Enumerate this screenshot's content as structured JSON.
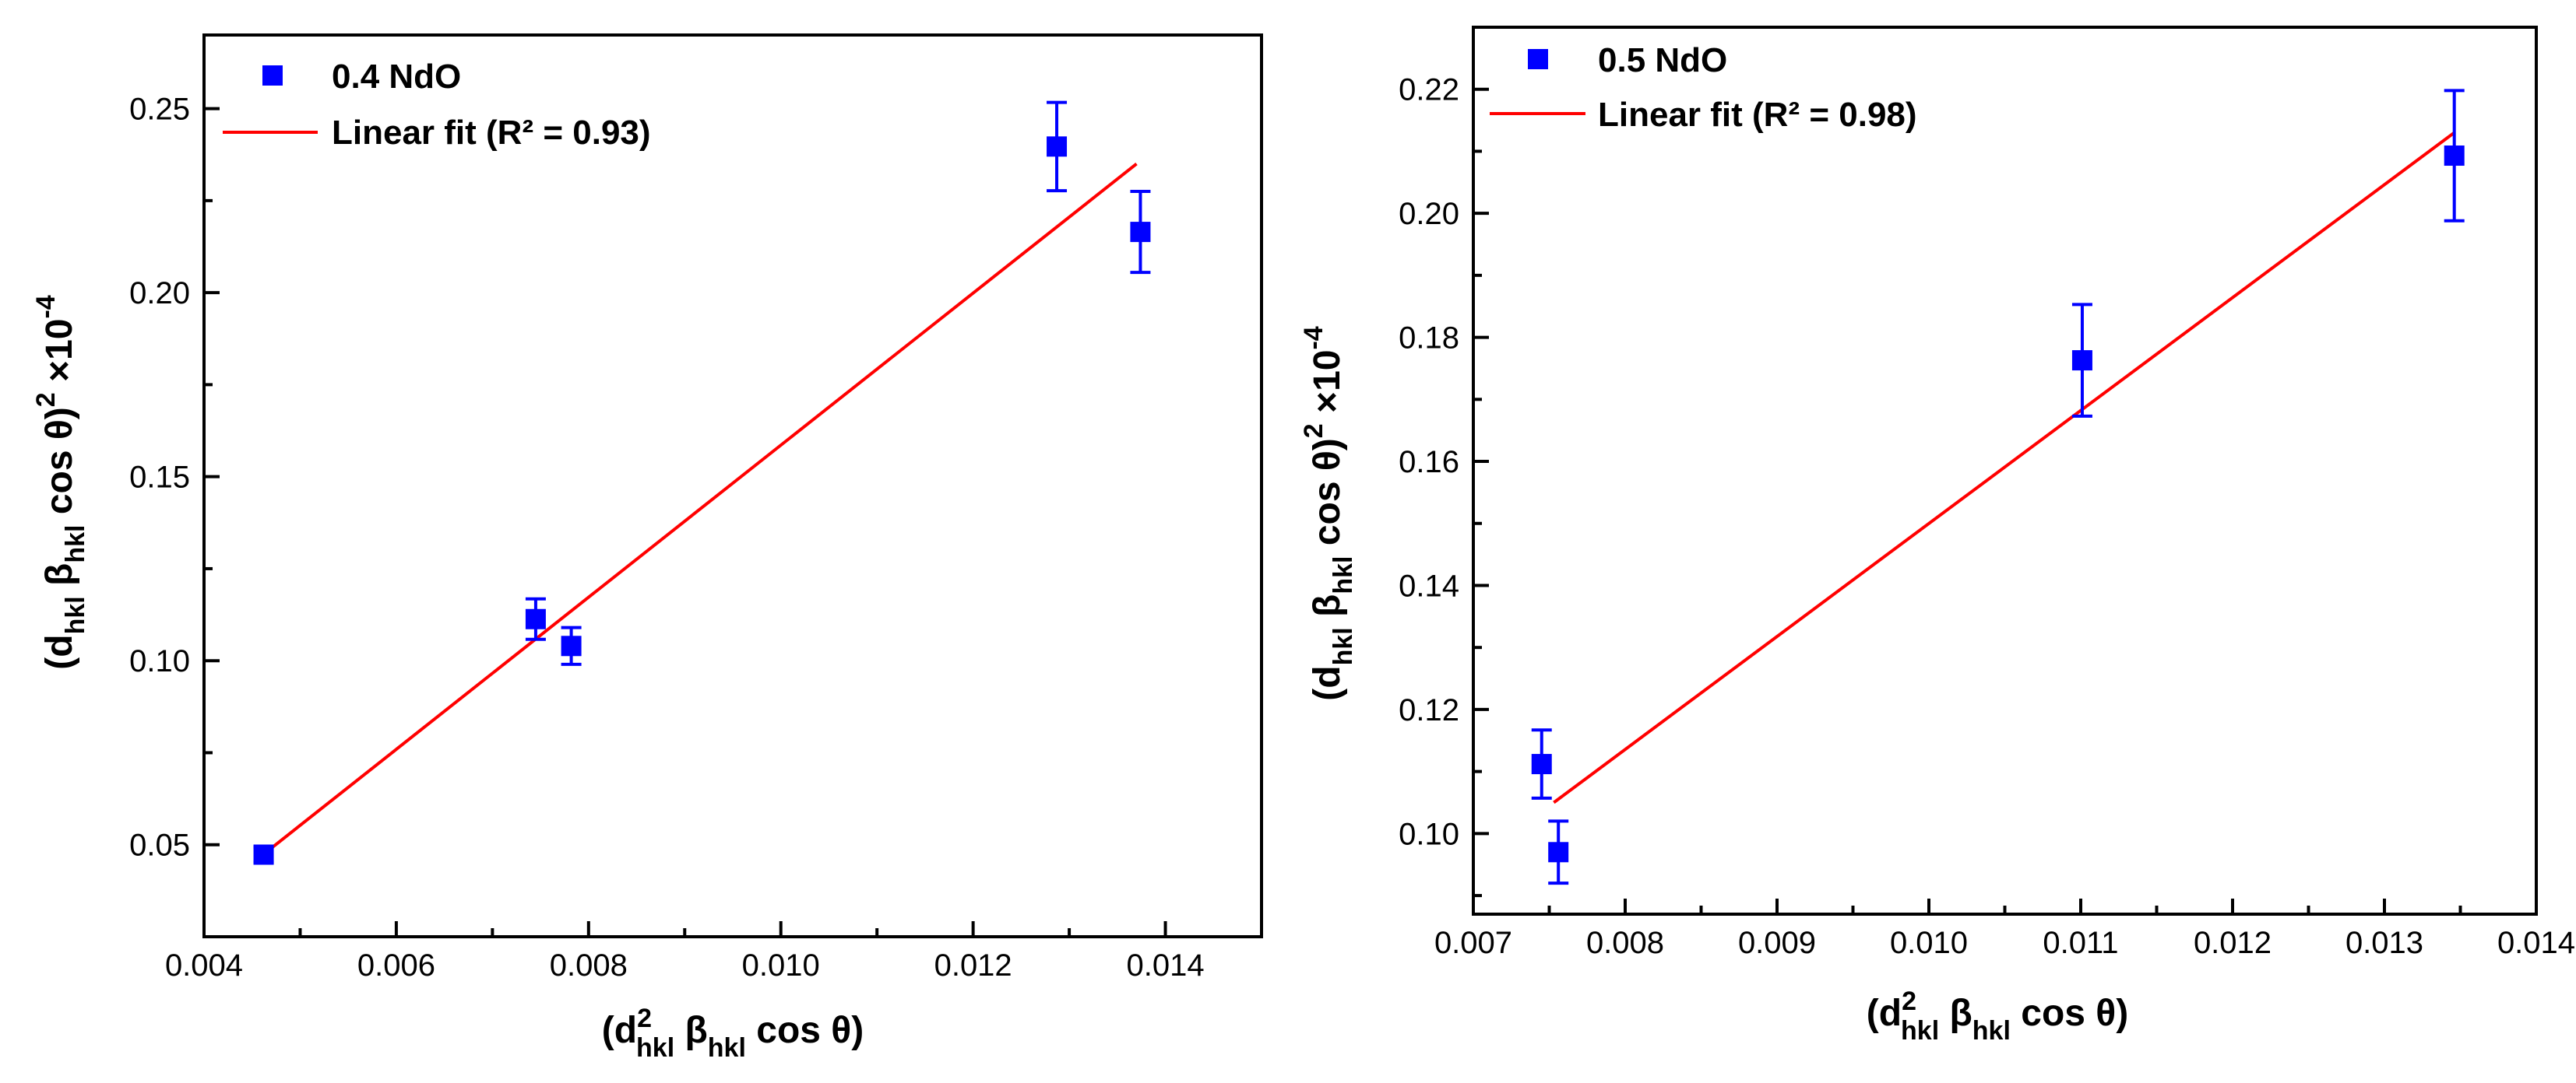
{
  "chart_data": [
    {
      "type": "scatter",
      "title": "",
      "series": [
        {
          "name": "0.4 NdO",
          "marker_color": "#0000ff",
          "x": [
            0.00462,
            0.00745,
            0.00782,
            0.01287,
            0.01374
          ],
          "y": [
            0.0473,
            0.1113,
            0.104,
            0.2397,
            0.2165
          ],
          "yerr": [
            0.002,
            0.0055,
            0.005,
            0.012,
            0.011
          ]
        }
      ],
      "fit": {
        "name": "Linear fit (R² = 0.93)",
        "color": "#ff0000",
        "x": [
          0.0046,
          0.0137
        ],
        "y": [
          0.047,
          0.235
        ]
      },
      "xlim": [
        0.004,
        0.015
      ],
      "ylim": [
        0.025,
        0.27
      ],
      "xticks": [
        0.004,
        0.006,
        0.008,
        0.01,
        0.012,
        0.014
      ],
      "xtick_labels": [
        "0.004",
        "0.006",
        "0.008",
        "0.010",
        "0.012",
        "0.014"
      ],
      "yticks": [
        0.05,
        0.1,
        0.15,
        0.2,
        0.25
      ],
      "ytick_labels": [
        "0.05",
        "0.10",
        "0.15",
        "0.20",
        "0.25"
      ],
      "xlabel": {
        "open": "(d",
        "sup": "2",
        "sub1": "hkl",
        "beta": " β",
        "sub2": "hkl",
        "tail": " cos θ)"
      },
      "ylabel": {
        "open": "(d",
        "sub1": "hkl",
        "beta": " β",
        "sub2": "hkl",
        "mid": " cos θ)",
        "sup": "2",
        "times": " ×10",
        "exp": "-4"
      },
      "legend_position": "top-left"
    },
    {
      "type": "scatter",
      "title": "",
      "series": [
        {
          "name": "0.5 NdO",
          "marker_color": "#0000ff",
          "x": [
            0.00745,
            0.00756,
            0.01101,
            0.01346
          ],
          "y": [
            0.1112,
            0.097,
            0.1763,
            0.2093
          ],
          "yerr": [
            0.0055,
            0.005,
            0.009,
            0.0105
          ]
        }
      ],
      "fit": {
        "name": "Linear fit (R² = 0.98)",
        "color": "#ff0000",
        "x": [
          0.00753,
          0.01346
        ],
        "y": [
          0.105,
          0.213
        ]
      },
      "xlim": [
        0.007,
        0.014
      ],
      "ylim": [
        0.087,
        0.23
      ],
      "xticks": [
        0.007,
        0.008,
        0.009,
        0.01,
        0.011,
        0.012,
        0.013,
        0.014
      ],
      "xtick_labels": [
        "0.007",
        "0.008",
        "0.009",
        "0.010",
        "0.011",
        "0.012",
        "0.013",
        "0.014"
      ],
      "yticks": [
        0.1,
        0.12,
        0.14,
        0.16,
        0.18,
        0.2,
        0.22
      ],
      "ytick_labels": [
        "0.10",
        "0.12",
        "0.14",
        "0.16",
        "0.18",
        "0.20",
        "0.22"
      ],
      "xlabel": {
        "open": "(d",
        "sup": "2",
        "sub1": "hkl",
        "beta": " β",
        "sub2": "hkl",
        "tail": " cos θ)"
      },
      "ylabel": {
        "open": "(d",
        "sub1": "hkl",
        "beta": " β",
        "sub2": "hkl",
        "mid": " cos θ)",
        "sup": "2",
        "times": " ×10",
        "exp": "-4"
      },
      "legend_position": "top-left"
    }
  ]
}
